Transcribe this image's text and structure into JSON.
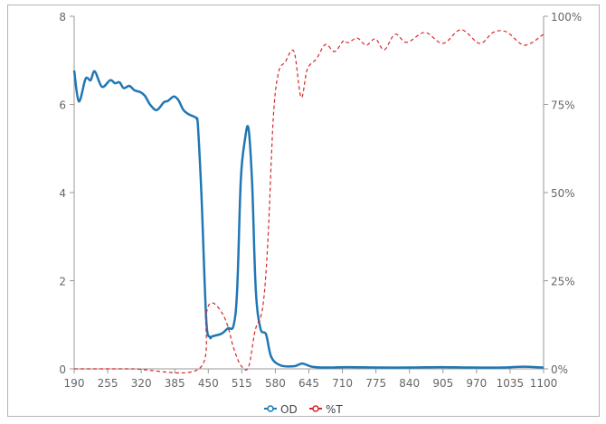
{
  "chart_data": {
    "type": "line",
    "title": "",
    "xlabel": "",
    "ylabel": "",
    "xlim": [
      190,
      1100
    ],
    "ylim": [
      0,
      8
    ],
    "y2lim": [
      0,
      100
    ],
    "grid": false,
    "legend_placement": "bottom",
    "x_ticks": [
      "190",
      "255",
      "320",
      "385",
      "450",
      "515",
      "580",
      "645",
      "710",
      "775",
      "840",
      "905",
      "970",
      "1035",
      "1100"
    ],
    "y_ticks": [
      "0",
      "2",
      "4",
      "6",
      "8"
    ],
    "y2_ticks": [
      "0%",
      "25%",
      "50%",
      "75%",
      "100%"
    ],
    "series": [
      {
        "name": "OD",
        "axis": "left",
        "color": "#1f77b4",
        "style": "solid",
        "x": [
          190,
          199,
          211,
          216,
          222,
          230,
          244,
          260,
          269,
          278,
          286,
          297,
          307,
          318,
          327,
          337,
          350,
          364,
          372,
          383,
          392,
          402,
          413,
          423,
          427,
          430,
          437,
          446,
          453,
          458,
          476,
          488,
          499,
          506,
          513,
          521,
          528,
          535,
          542,
          551,
          562,
          572,
          590,
          616,
          632,
          651,
          677,
          720,
          780,
          840,
          900,
          960,
          1020,
          1060,
          1100
        ],
        "y": [
          6.77,
          6.07,
          6.55,
          6.6,
          6.55,
          6.75,
          6.4,
          6.55,
          6.48,
          6.5,
          6.37,
          6.42,
          6.32,
          6.28,
          6.2,
          6.0,
          5.87,
          6.05,
          6.08,
          6.18,
          6.1,
          5.87,
          5.77,
          5.72,
          5.68,
          5.5,
          3.86,
          1.13,
          0.72,
          0.74,
          0.8,
          0.92,
          0.98,
          1.8,
          4.27,
          5.2,
          5.45,
          4.2,
          1.8,
          0.92,
          0.78,
          0.27,
          0.08,
          0.06,
          0.12,
          0.05,
          0.03,
          0.04,
          0.03,
          0.03,
          0.04,
          0.03,
          0.03,
          0.05,
          0.03
        ]
      },
      {
        "name": "%T",
        "axis": "right",
        "color": "#d62728",
        "style": "dashed",
        "x": [
          190,
          300,
          432,
          446,
          458,
          476,
          488,
          499,
          513,
          528,
          541,
          555,
          565,
          576,
          586,
          599,
          616,
          630,
          642,
          660,
          677,
          695,
          712,
          721,
          739,
          756,
          774,
          791,
          812,
          835,
          870,
          905,
          940,
          976,
          1002,
          1028,
          1063,
          1100
        ],
        "y": [
          0,
          0,
          0,
          15.6,
          18.7,
          16,
          12,
          6,
          1,
          0.5,
          11,
          17,
          35,
          71,
          84,
          87,
          90,
          77,
          85,
          88,
          92,
          90,
          93,
          92.5,
          93.8,
          91.8,
          93.6,
          90.5,
          94.9,
          92.6,
          95.4,
          92.3,
          96.2,
          92.3,
          95.4,
          95.6,
          91.8,
          94.9
        ]
      }
    ]
  }
}
